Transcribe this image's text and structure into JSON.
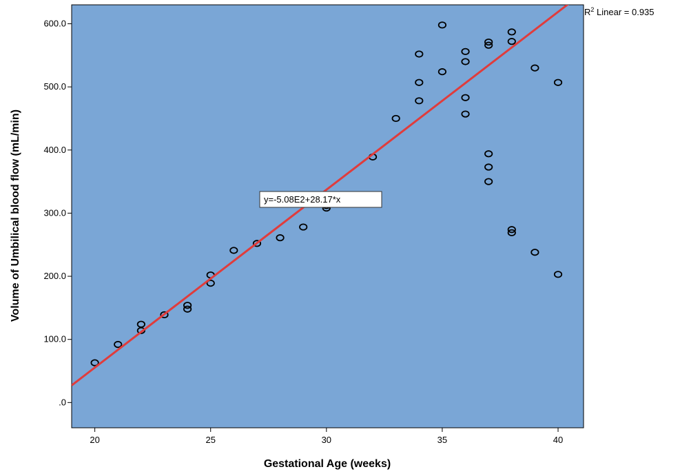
{
  "chart_data": {
    "type": "scatter",
    "xlabel": "Gestational Age (weeks)",
    "ylabel": "Volume of Umbilical blood flow (mL/min)",
    "xlim": [
      19,
      41.1
    ],
    "ylim": [
      -40,
      630
    ],
    "x_ticks": [
      20,
      25,
      30,
      35,
      40
    ],
    "x_tick_labels": [
      "20",
      "25",
      "30",
      "35",
      "40"
    ],
    "y_ticks": [
      0,
      100,
      200,
      300,
      400,
      500,
      600
    ],
    "y_tick_labels": [
      ".0",
      "100.0",
      "200.0",
      "300.0",
      "400.0",
      "500.0",
      "600.0"
    ],
    "grid": false,
    "plot_background": "#7aa6d6",
    "marker_color": "#000000",
    "fit_line_color": "#e03c3c",
    "points": [
      [
        20,
        63
      ],
      [
        21,
        92
      ],
      [
        22,
        114
      ],
      [
        22,
        124
      ],
      [
        23,
        139
      ],
      [
        24,
        148
      ],
      [
        24,
        154
      ],
      [
        25,
        189
      ],
      [
        25,
        202
      ],
      [
        26,
        241
      ],
      [
        27,
        252
      ],
      [
        28,
        261
      ],
      [
        29,
        278
      ],
      [
        30,
        308
      ],
      [
        30,
        312
      ],
      [
        32,
        389
      ],
      [
        33,
        450
      ],
      [
        34,
        478
      ],
      [
        34,
        507
      ],
      [
        34,
        552
      ],
      [
        35,
        524
      ],
      [
        35,
        598
      ],
      [
        36,
        457
      ],
      [
        36,
        483
      ],
      [
        36,
        540
      ],
      [
        36,
        556
      ],
      [
        37,
        350
      ],
      [
        37,
        373
      ],
      [
        37,
        394
      ],
      [
        37,
        566
      ],
      [
        37,
        571
      ],
      [
        38,
        269
      ],
      [
        38,
        274
      ],
      [
        38,
        572
      ],
      [
        38,
        587
      ],
      [
        39,
        238
      ],
      [
        39,
        530
      ],
      [
        40,
        203
      ],
      [
        40,
        507
      ]
    ],
    "fit": {
      "intercept": -508,
      "slope": 28.17
    },
    "equation_label": "y=-5.08E2+28.17*x",
    "r2_label_prefix": "R",
    "r2_label_sup": "2",
    "r2_label_suffix": " Linear = 0.935"
  }
}
